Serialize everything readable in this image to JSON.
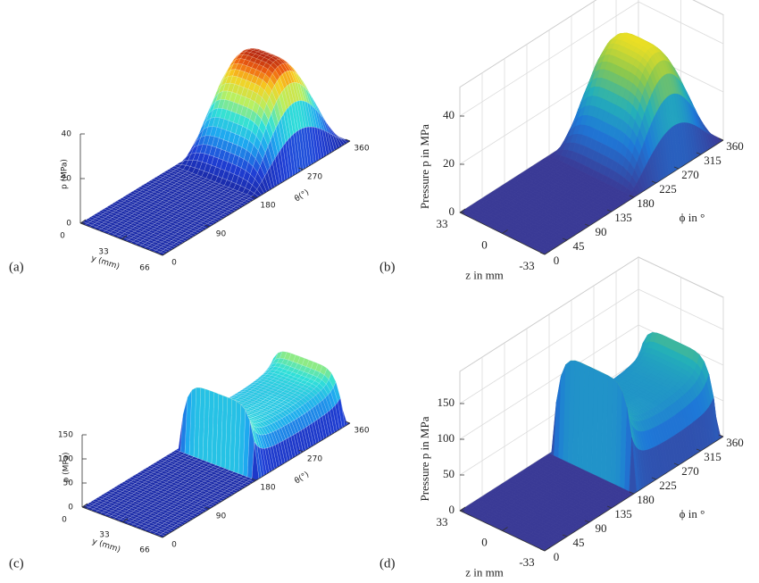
{
  "chart_data": [
    {
      "type": "surface",
      "panel_label": "(a)",
      "colormap": "jet",
      "box": false,
      "zlabel": "p (MPa)",
      "zlim": [
        0,
        40
      ],
      "zticks": [
        0,
        20,
        40
      ],
      "ylabel": "y (mm)",
      "ylim": [
        0,
        66
      ],
      "yticks": [
        0,
        33,
        66
      ],
      "xlabel": "θ(°)",
      "xlim": [
        0,
        360
      ],
      "xticks": [
        0,
        90,
        180,
        270,
        360
      ]
    },
    {
      "type": "surface",
      "panel_label": "(b)",
      "colormap": "parula",
      "box": true,
      "zlabel": "Pressure p in MPa",
      "zlim": [
        0,
        40
      ],
      "zticks": [
        0,
        20,
        40
      ],
      "ylabel": "z in mm",
      "ylim": [
        33,
        -33
      ],
      "yticks": [
        33,
        0,
        -33
      ],
      "xlabel": "ϕ in °",
      "xlim": [
        0,
        360
      ],
      "xticks": [
        0,
        45,
        90,
        135,
        180,
        225,
        270,
        315,
        360
      ]
    },
    {
      "type": "surface",
      "panel_label": "(c)",
      "colormap": "jet",
      "box": false,
      "zlabel": "p (MPa)",
      "zlim": [
        0,
        150
      ],
      "zticks": [
        0,
        50,
        100,
        150
      ],
      "ylabel": "y (mm)",
      "ylim": [
        0,
        66
      ],
      "yticks": [
        0,
        33,
        66
      ],
      "xlabel": "θ(°)",
      "xlim": [
        0,
        360
      ],
      "xticks": [
        0,
        90,
        180,
        270,
        360
      ]
    },
    {
      "type": "surface",
      "panel_label": "(d)",
      "colormap": "parula",
      "box": true,
      "zlabel": "Pressure p in MPa",
      "zlim": [
        0,
        150
      ],
      "zticks": [
        0,
        50,
        100,
        150
      ],
      "ylabel": "z in mm",
      "ylim": [
        33,
        -33
      ],
      "yticks": [
        33,
        0,
        -33
      ],
      "xlabel": "ϕ in °",
      "xlim": [
        0,
        360
      ],
      "xticks": [
        0,
        45,
        90,
        135,
        180,
        225,
        270,
        315,
        360
      ]
    }
  ]
}
